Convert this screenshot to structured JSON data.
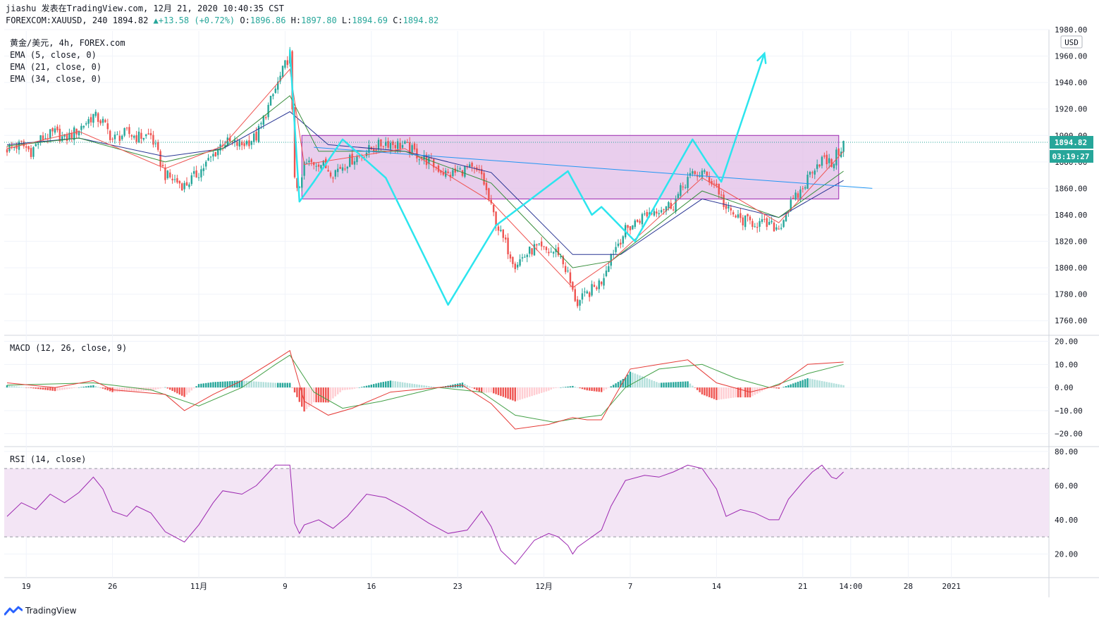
{
  "header": {
    "author": "jiashu",
    "published": "发表在TradingView.com, 12月 21, 2020 10:40:35 CST",
    "symbol": "FOREXCOM:XAUUSD, 240",
    "last": "1894.82",
    "change_arrow": "▲",
    "change": "+13.58 (+0.72%)",
    "o_label": "O:",
    "o_value": "1896.86",
    "h_label": "H:",
    "h_value": "1897.80",
    "l_label": "L:",
    "l_value": "1894.69",
    "c_label": "C:",
    "c_value": "1894.82"
  },
  "legend": {
    "title": "黄金/美元, 4h, FOREX.com",
    "ema5": "EMA (5, close, 0)",
    "ema21": "EMA (21, close, 0)",
    "ema34": "EMA (34, close, 0)",
    "macd": "MACD (12, 26, close, 9)",
    "rsi": "RSI (14, close)"
  },
  "currency_button": "USD",
  "price_tag": "1894.82",
  "countdown_tag": "03:19:27",
  "footer": {
    "brand": "TradingView",
    "icon": "tradingview-logo-icon"
  },
  "colors": {
    "up": "#26a69a",
    "down": "#ef5350",
    "zigzag": "#2ce5ee",
    "rect_fill": "#e1bee7",
    "rect_stroke": "#9c27b0",
    "trendline": "#2196f3",
    "ema5": "#ef5350",
    "ema21": "#388e3c",
    "ema34": "#283593",
    "rsi_line": "#9c27b0",
    "rsi_band": "#f3e5f5",
    "price_tag": "#26a69a"
  },
  "chart_data": [
    {
      "type": "candlestick",
      "title": "黄金/美元, 4h, FOREX.com",
      "ylim": [
        1750,
        1980
      ],
      "y_ticks": [
        "1760.00",
        "1780.00",
        "1800.00",
        "1820.00",
        "1840.00",
        "1860.00",
        "1880.00",
        "1900.00",
        "1920.00",
        "1940.00",
        "1960.00",
        "1980.00"
      ],
      "x_ticks": [
        "19",
        "26",
        "11月",
        "9",
        "16",
        "23",
        "12月",
        "7",
        "14",
        "21",
        "14:00",
        "28",
        "2021"
      ],
      "x_tick_bars": [
        8,
        44,
        80,
        116,
        152,
        188,
        224,
        260,
        296,
        332,
        352,
        376,
        394
      ],
      "close_path": [
        [
          0,
          1890
        ],
        [
          6,
          1893
        ],
        [
          10,
          1888
        ],
        [
          14,
          1897
        ],
        [
          20,
          1902
        ],
        [
          24,
          1897
        ],
        [
          30,
          1905
        ],
        [
          36,
          1915
        ],
        [
          40,
          1910
        ],
        [
          44,
          1897
        ],
        [
          50,
          1902
        ],
        [
          54,
          1899
        ],
        [
          60,
          1900
        ],
        [
          66,
          1870
        ],
        [
          74,
          1862
        ],
        [
          80,
          1872
        ],
        [
          86,
          1885
        ],
        [
          90,
          1895
        ],
        [
          98,
          1893
        ],
        [
          104,
          1899
        ],
        [
          112,
          1935
        ],
        [
          118,
          1962
        ],
        [
          120,
          1870
        ],
        [
          122,
          1857
        ],
        [
          124,
          1878
        ],
        [
          130,
          1880
        ],
        [
          136,
          1872
        ],
        [
          142,
          1880
        ],
        [
          150,
          1888
        ],
        [
          158,
          1895
        ],
        [
          166,
          1892
        ],
        [
          176,
          1880
        ],
        [
          184,
          1870
        ],
        [
          192,
          1875
        ],
        [
          198,
          1870
        ],
        [
          202,
          1845
        ],
        [
          206,
          1825
        ],
        [
          212,
          1803
        ],
        [
          220,
          1815
        ],
        [
          226,
          1812
        ],
        [
          230,
          1812
        ],
        [
          234,
          1795
        ],
        [
          236,
          1781
        ],
        [
          238,
          1773
        ],
        [
          242,
          1780
        ],
        [
          248,
          1790
        ],
        [
          252,
          1810
        ],
        [
          258,
          1828
        ],
        [
          266,
          1840
        ],
        [
          272,
          1845
        ],
        [
          278,
          1848
        ],
        [
          284,
          1868
        ],
        [
          290,
          1872
        ],
        [
          296,
          1862
        ],
        [
          300,
          1844
        ],
        [
          306,
          1836
        ],
        [
          312,
          1834
        ],
        [
          318,
          1832
        ],
        [
          322,
          1830
        ],
        [
          326,
          1845
        ],
        [
          332,
          1860
        ],
        [
          336,
          1875
        ],
        [
          340,
          1882
        ],
        [
          344,
          1878
        ],
        [
          346,
          1885
        ],
        [
          349,
          1894
        ]
      ],
      "ema5_path": [
        [
          0,
          1890
        ],
        [
          30,
          1903
        ],
        [
          66,
          1875
        ],
        [
          90,
          1892
        ],
        [
          118,
          1950
        ],
        [
          124,
          1878
        ],
        [
          166,
          1890
        ],
        [
          202,
          1850
        ],
        [
          236,
          1785
        ],
        [
          252,
          1805
        ],
        [
          290,
          1868
        ],
        [
          322,
          1834
        ],
        [
          349,
          1888
        ]
      ],
      "ema21_path": [
        [
          0,
          1892
        ],
        [
          30,
          1898
        ],
        [
          66,
          1880
        ],
        [
          90,
          1890
        ],
        [
          118,
          1930
        ],
        [
          130,
          1888
        ],
        [
          166,
          1888
        ],
        [
          202,
          1864
        ],
        [
          236,
          1800
        ],
        [
          252,
          1805
        ],
        [
          290,
          1858
        ],
        [
          322,
          1838
        ],
        [
          349,
          1873
        ]
      ],
      "ema34_path": [
        [
          0,
          1893
        ],
        [
          30,
          1898
        ],
        [
          66,
          1884
        ],
        [
          90,
          1890
        ],
        [
          118,
          1918
        ],
        [
          134,
          1893
        ],
        [
          166,
          1888
        ],
        [
          202,
          1872
        ],
        [
          236,
          1810
        ],
        [
          256,
          1810
        ],
        [
          290,
          1852
        ],
        [
          322,
          1838
        ],
        [
          349,
          1866
        ]
      ],
      "rectangle": {
        "x_bars": [
          123,
          347
        ],
        "price": [
          1852,
          1900
        ]
      },
      "trendline": {
        "x_bars": [
          128,
          361
        ],
        "price": [
          1891,
          1860
        ]
      },
      "zigzag": [
        [
          118,
          1965
        ],
        [
          122,
          1850
        ],
        [
          128,
          1865
        ],
        [
          140,
          1897
        ],
        [
          158,
          1868
        ],
        [
          184,
          1772
        ],
        [
          204,
          1832
        ],
        [
          234,
          1873
        ],
        [
          244,
          1840
        ],
        [
          248,
          1846
        ],
        [
          262,
          1820
        ],
        [
          286,
          1897
        ],
        [
          292,
          1880
        ],
        [
          298,
          1865
        ],
        [
          316,
          1962
        ]
      ],
      "last_price": 1894.82
    },
    {
      "type": "macd",
      "title": "MACD (12, 26, close, 9)",
      "ylim": [
        -25,
        22
      ],
      "y_ticks": [
        "20.00",
        "10.00",
        "0.00",
        "−10.00",
        "−20.00"
      ],
      "macd_path": [
        [
          0,
          2
        ],
        [
          20,
          0
        ],
        [
          36,
          3
        ],
        [
          44,
          -1
        ],
        [
          66,
          -3
        ],
        [
          74,
          -10
        ],
        [
          86,
          -3
        ],
        [
          98,
          3
        ],
        [
          112,
          12
        ],
        [
          118,
          16
        ],
        [
          124,
          -6
        ],
        [
          134,
          -12
        ],
        [
          144,
          -9
        ],
        [
          160,
          -2
        ],
        [
          190,
          1
        ],
        [
          202,
          -7
        ],
        [
          212,
          -18
        ],
        [
          226,
          -16
        ],
        [
          236,
          -13
        ],
        [
          242,
          -14
        ],
        [
          248,
          -14
        ],
        [
          260,
          8
        ],
        [
          272,
          10
        ],
        [
          284,
          12
        ],
        [
          296,
          2
        ],
        [
          310,
          -2
        ],
        [
          322,
          1
        ],
        [
          334,
          10
        ],
        [
          349,
          11
        ]
      ],
      "signal_path": [
        [
          0,
          1
        ],
        [
          36,
          2
        ],
        [
          60,
          -1
        ],
        [
          80,
          -8
        ],
        [
          98,
          0
        ],
        [
          112,
          10
        ],
        [
          118,
          14
        ],
        [
          128,
          -2
        ],
        [
          140,
          -9
        ],
        [
          156,
          -6
        ],
        [
          180,
          0
        ],
        [
          198,
          -2
        ],
        [
          212,
          -12
        ],
        [
          228,
          -15
        ],
        [
          240,
          -13
        ],
        [
          248,
          -12
        ],
        [
          258,
          0
        ],
        [
          272,
          8
        ],
        [
          290,
          10
        ],
        [
          304,
          4
        ],
        [
          318,
          0
        ],
        [
          334,
          6
        ],
        [
          349,
          10
        ]
      ]
    },
    {
      "type": "line",
      "title": "RSI (14, close)",
      "ylim": [
        7,
        82
      ],
      "y_ticks": [
        "80.00",
        "60.00",
        "40.00",
        "20.00"
      ],
      "band": [
        30,
        70
      ],
      "rsi_path": [
        [
          0,
          42
        ],
        [
          6,
          50
        ],
        [
          12,
          46
        ],
        [
          18,
          55
        ],
        [
          24,
          50
        ],
        [
          30,
          56
        ],
        [
          36,
          65
        ],
        [
          40,
          58
        ],
        [
          44,
          45
        ],
        [
          50,
          42
        ],
        [
          54,
          48
        ],
        [
          60,
          44
        ],
        [
          66,
          33
        ],
        [
          74,
          27
        ],
        [
          80,
          37
        ],
        [
          86,
          50
        ],
        [
          90,
          57
        ],
        [
          98,
          55
        ],
        [
          104,
          60
        ],
        [
          112,
          72
        ],
        [
          118,
          72
        ],
        [
          120,
          38
        ],
        [
          122,
          32
        ],
        [
          124,
          37
        ],
        [
          130,
          40
        ],
        [
          136,
          35
        ],
        [
          142,
          42
        ],
        [
          150,
          55
        ],
        [
          158,
          53
        ],
        [
          166,
          47
        ],
        [
          176,
          38
        ],
        [
          184,
          32
        ],
        [
          192,
          34
        ],
        [
          198,
          45
        ],
        [
          202,
          36
        ],
        [
          206,
          22
        ],
        [
          212,
          14
        ],
        [
          220,
          28
        ],
        [
          226,
          32
        ],
        [
          230,
          30
        ],
        [
          234,
          25
        ],
        [
          236,
          20
        ],
        [
          238,
          24
        ],
        [
          242,
          28
        ],
        [
          248,
          34
        ],
        [
          252,
          48
        ],
        [
          258,
          63
        ],
        [
          266,
          66
        ],
        [
          272,
          65
        ],
        [
          278,
          68
        ],
        [
          284,
          72
        ],
        [
          290,
          70
        ],
        [
          296,
          58
        ],
        [
          300,
          42
        ],
        [
          306,
          46
        ],
        [
          312,
          44
        ],
        [
          318,
          40
        ],
        [
          322,
          40
        ],
        [
          326,
          52
        ],
        [
          332,
          62
        ],
        [
          336,
          68
        ],
        [
          340,
          72
        ],
        [
          344,
          65
        ],
        [
          346,
          64
        ],
        [
          349,
          68
        ]
      ]
    }
  ]
}
